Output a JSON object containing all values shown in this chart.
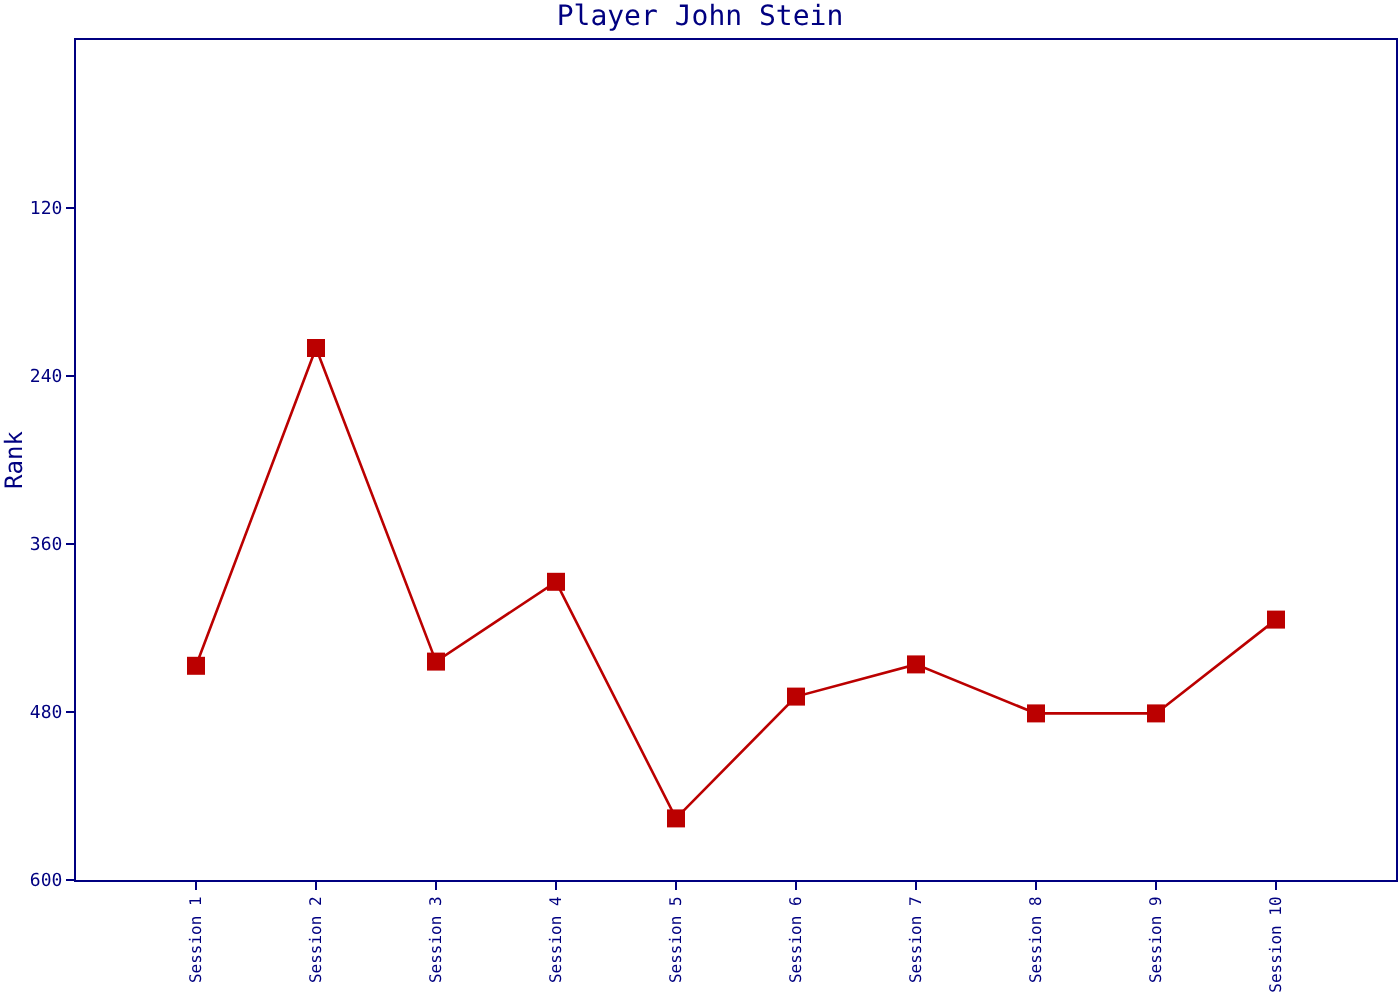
{
  "chart_data": {
    "type": "line",
    "title": "Player John Stein",
    "ylabel": "Rank",
    "categories": [
      "Session 1",
      "Session 2",
      "Session 3",
      "Session 4",
      "Session 5",
      "Session 6",
      "Session 7",
      "Session 8",
      "Session 9",
      "Session 10"
    ],
    "series": [
      {
        "color": "#bb0000",
        "values": [
          447,
          220,
          444,
          387,
          556,
          469,
          446,
          481,
          481,
          414
        ]
      }
    ],
    "ylim": [
      600,
      0
    ],
    "yticks": [
      120,
      240,
      360,
      480,
      600
    ],
    "legend": false,
    "marker": "square",
    "line_style": "solid"
  }
}
